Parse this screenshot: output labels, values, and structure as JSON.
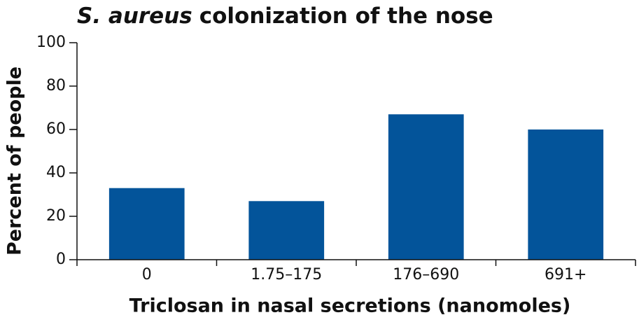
{
  "chart_data": {
    "type": "bar",
    "title_parts": [
      "S. aureus",
      "colonization of the nose"
    ],
    "x_label": "Triclosan in nasal secretions (nanomoles)",
    "y_label": "Percent of people",
    "categories": [
      "0",
      "1.75–175",
      "176–690",
      "691+"
    ],
    "values": [
      33,
      27,
      67,
      60
    ],
    "color": "#03549a",
    "ylim": [
      0,
      100
    ],
    "yticks": [
      0,
      20,
      40,
      60,
      80,
      100
    ],
    "grid": false
  }
}
